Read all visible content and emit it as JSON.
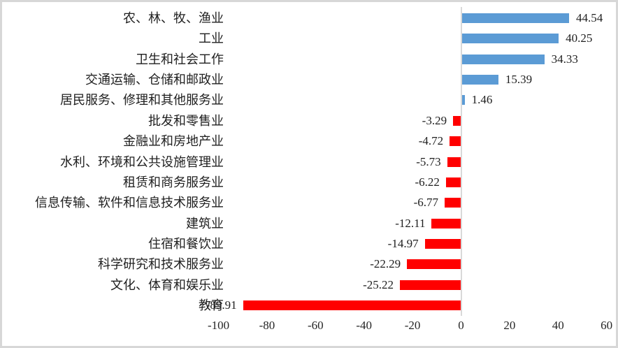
{
  "chart_data": {
    "type": "bar",
    "orientation": "horizontal",
    "title": "",
    "xlabel": "",
    "ylabel": "",
    "categories": [
      "农、林、牧、渔业",
      "工业",
      "卫生和社会工作",
      "交通运输、仓储和邮政业",
      "居民服务、修理和其他服务业",
      "批发和零售业",
      "金融业和房地产业",
      "水利、环境和公共设施管理业",
      "租赁和商务服务业",
      "信息传输、软件和信息技术服务业",
      "建筑业",
      "住宿和餐饮业",
      "科学研究和技术服务业",
      "文化、体育和娱乐业",
      "教育"
    ],
    "values": [
      44.54,
      40.25,
      34.33,
      15.39,
      1.46,
      -3.29,
      -4.72,
      -5.73,
      -6.22,
      -6.77,
      -12.11,
      -14.97,
      -22.29,
      -25.22,
      -89.91
    ],
    "data_labels": [
      "44.54",
      "40.25",
      "34.33",
      "15.39",
      "1.46",
      "-3.29",
      "-4.72",
      "-5.73",
      "-6.22",
      "-6.77",
      "-12.11",
      "-14.97",
      "-22.29",
      "-25.22",
      "-89.91"
    ],
    "xlim": [
      -100,
      60
    ],
    "x_ticks": [
      -100,
      -80,
      -60,
      -40,
      -20,
      0,
      20,
      40,
      60
    ],
    "x_tick_labels": [
      "-100",
      "-80",
      "-60",
      "-40",
      "-20",
      "0",
      "20",
      "40",
      "60"
    ],
    "grid": false,
    "legend": false,
    "positive_color": "#5B9BD5",
    "negative_color": "#FF0000",
    "axis_line_color": "#D9D9D9",
    "text_color": "#1F1F1F",
    "frame_border_color": "#D7D7D7",
    "background_color": "#FFFFFF"
  }
}
